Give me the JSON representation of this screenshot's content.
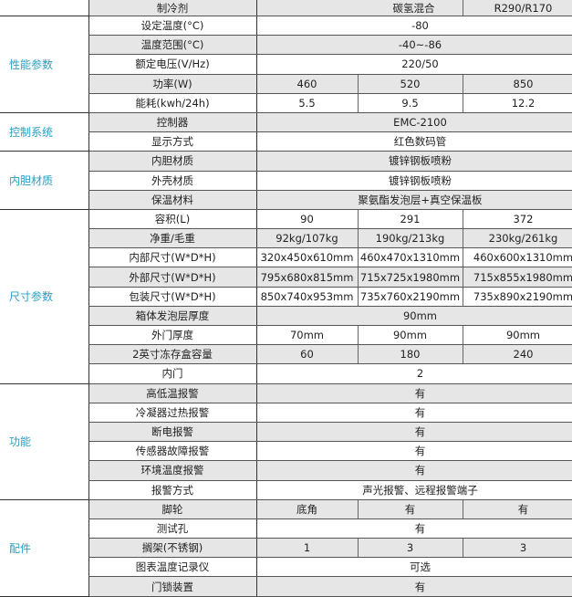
{
  "header": {
    "label": "制冷剂",
    "values": [
      "碳氢混合",
      "R290/R170"
    ]
  },
  "sections": [
    {
      "category": "性能参数",
      "rows": [
        {
          "label": "设定温度(°C)",
          "values": [
            "-80"
          ]
        },
        {
          "label": "温度范围(°C)",
          "values": [
            "-40~-86"
          ]
        },
        {
          "label": "额定电压(V/Hz)",
          "values": [
            "220/50"
          ]
        },
        {
          "label": "功率(W)",
          "values": [
            "460",
            "520",
            "850"
          ]
        },
        {
          "label": "能耗(kwh/24h)",
          "values": [
            "5.5",
            "9.5",
            "12.2"
          ]
        }
      ]
    },
    {
      "category": "控制系统",
      "rows": [
        {
          "label": "控制器",
          "values": [
            "EMC-2100"
          ]
        },
        {
          "label": "显示方式",
          "values": [
            "红色数码管"
          ]
        }
      ]
    },
    {
      "category": "内胆材质",
      "rows": [
        {
          "label": "内胆材质",
          "values": [
            "镀锌钢板喷粉"
          ]
        },
        {
          "label": "外壳材质",
          "values": [
            "镀锌钢板喷粉"
          ]
        },
        {
          "label": "保温材料",
          "values": [
            "聚氨酯发泡层+真空保温板"
          ]
        }
      ]
    },
    {
      "category": "尺寸参数",
      "rows": [
        {
          "label": "容积(L)",
          "values": [
            "90",
            "291",
            "372"
          ]
        },
        {
          "label": "净重/毛重",
          "values": [
            "92kg/107kg",
            "190kg/213kg",
            "230kg/261kg"
          ]
        },
        {
          "label": "内部尺寸(W*D*H)",
          "values": [
            "320x450x610mm",
            "460x470x1310mm",
            "460x600x1310mm"
          ]
        },
        {
          "label": "外部尺寸(W*D*H)",
          "values": [
            "795x680x815mm",
            "715x725x1980mm",
            "715x855x1980mm"
          ]
        },
        {
          "label": "包装尺寸(W*D*H)",
          "values": [
            "850x740x953mm",
            "735x760x2190mm",
            "735x890x2190mm"
          ]
        },
        {
          "label": "箱体发泡层厚度",
          "values": [
            "90mm"
          ]
        },
        {
          "label": "外门厚度",
          "values": [
            "70mm",
            "90mm",
            "90mm"
          ]
        },
        {
          "label": "2英寸冻存盒容量",
          "values": [
            "60",
            "180",
            "240"
          ]
        },
        {
          "label": "内门",
          "values": [
            "2"
          ]
        }
      ]
    },
    {
      "category": "功能",
      "rows": [
        {
          "label": "高低温报警",
          "values": [
            "有"
          ]
        },
        {
          "label": "冷凝器过热报警",
          "values": [
            "有"
          ]
        },
        {
          "label": "断电报警",
          "values": [
            "有"
          ]
        },
        {
          "label": "传感器故障报警",
          "values": [
            "有"
          ]
        },
        {
          "label": "环境温度报警",
          "values": [
            "有"
          ]
        },
        {
          "label": "报警方式",
          "values": [
            "声光报警、远程报警端子"
          ]
        }
      ]
    },
    {
      "category": "配件",
      "rows": [
        {
          "label": "脚轮",
          "values": [
            "底角",
            "有",
            "有"
          ]
        },
        {
          "label": "测试孔",
          "values": [
            "有"
          ]
        },
        {
          "label": "搁架(不锈钢)",
          "values": [
            "1",
            "3",
            "3"
          ]
        },
        {
          "label": "图表温度记录仪",
          "values": [
            "可选"
          ]
        },
        {
          "label": "门锁装置",
          "values": [
            "有"
          ]
        }
      ]
    }
  ],
  "colors": {
    "category_text": "#2a9fc4",
    "row_gray": "#e6e6e6",
    "border": "#555555"
  }
}
